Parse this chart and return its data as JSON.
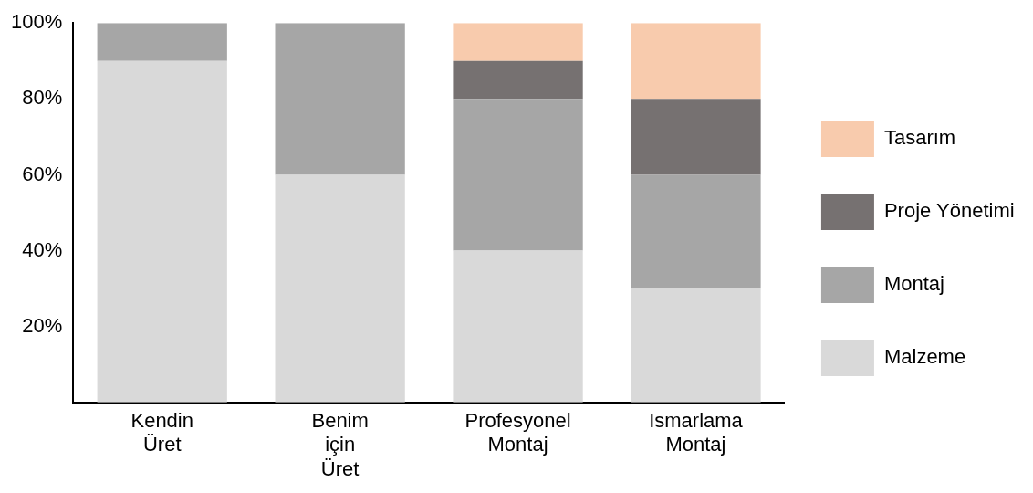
{
  "chart_data": {
    "type": "bar",
    "stacked": true,
    "categories": [
      "Kendin Üret",
      "Benim için Üret",
      "Profesyonel Montaj",
      "Ismarlama Montaj"
    ],
    "series": [
      {
        "name": "Malzeme",
        "color": "#d9d9d9",
        "values": [
          90,
          60,
          40,
          30
        ]
      },
      {
        "name": "Montaj",
        "color": "#a6a6a6",
        "values": [
          10,
          40,
          40,
          30
        ]
      },
      {
        "name": "Proje Yönetimi",
        "color": "#767171",
        "values": [
          null,
          null,
          10,
          20
        ]
      },
      {
        "name": "Tasarım",
        "color": "#f8cbad",
        "values": [
          null,
          null,
          10,
          20
        ]
      }
    ],
    "ylim": [
      0,
      100
    ],
    "yticks": [
      {
        "value": 20,
        "label": "20%"
      },
      {
        "value": 40,
        "label": "40%"
      },
      {
        "value": 60,
        "label": "60%"
      },
      {
        "value": 80,
        "label": "80%"
      },
      {
        "value": 100,
        "label": "100%"
      }
    ],
    "grid": false,
    "legend": "right"
  }
}
